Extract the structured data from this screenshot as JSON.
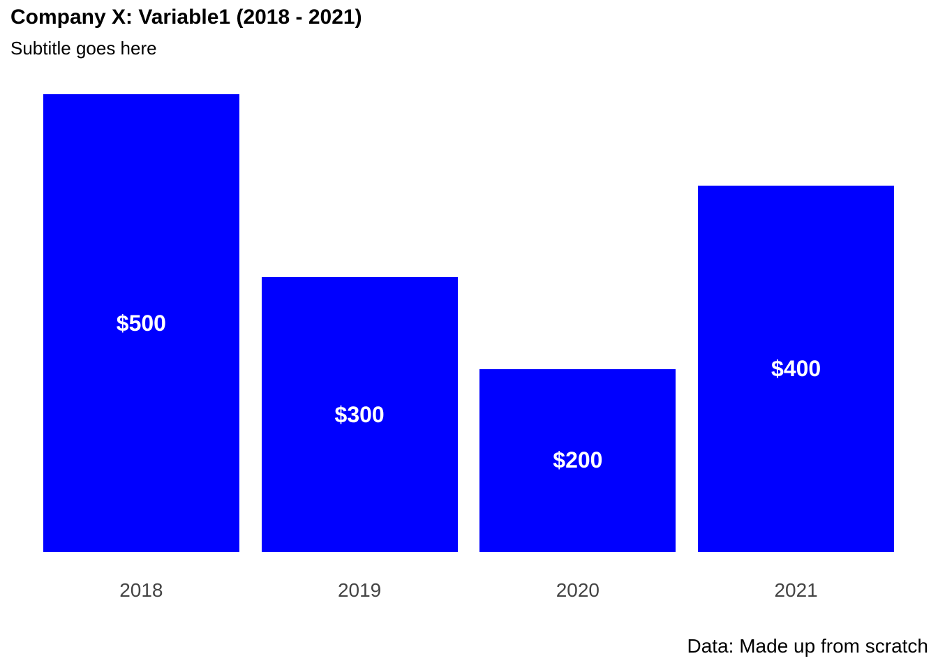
{
  "chart_data": {
    "type": "bar",
    "title": "Company X: Variable1 (2018 - 2021)",
    "subtitle": "Subtitle goes here",
    "caption": "Data: Made up from scratch",
    "categories": [
      "2018",
      "2019",
      "2020",
      "2021"
    ],
    "values": [
      500,
      300,
      200,
      400
    ],
    "value_labels": [
      "$500",
      "$300",
      "$200",
      "$400"
    ],
    "series_name": "Variable1",
    "xlabel": "",
    "ylabel": "",
    "ylim": [
      0,
      500
    ],
    "grid": false,
    "legend": false,
    "colors": {
      "bar": "#0000ff",
      "value_label": "#ffffff",
      "axis_text": "#444444",
      "title_text": "#000000",
      "background": "#ffffff"
    }
  }
}
